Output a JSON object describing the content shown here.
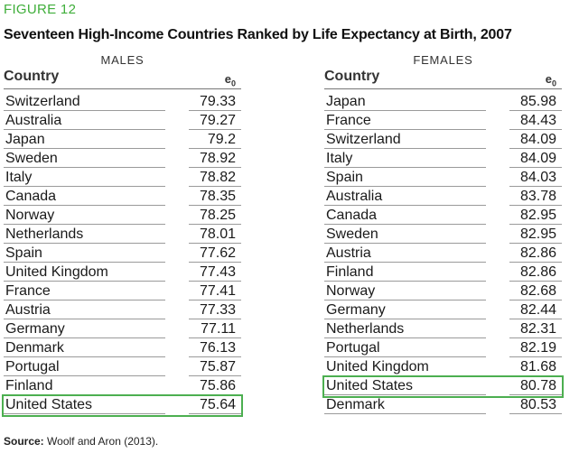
{
  "figure": {
    "label": "FIGURE 12",
    "title": "Seventeen High-Income Countries Ranked by Life Expectancy at Birth, 2007"
  },
  "columns": {
    "country": "Country",
    "e0_base": "e",
    "e0_sub": "0"
  },
  "males": {
    "title": "MALES",
    "rows": [
      {
        "country": "Switzerland",
        "value": "79.33"
      },
      {
        "country": "Australia",
        "value": "79.27"
      },
      {
        "country": "Japan",
        "value": "79.2"
      },
      {
        "country": "Sweden",
        "value": "78.92"
      },
      {
        "country": "Italy",
        "value": "78.82"
      },
      {
        "country": "Canada",
        "value": "78.35"
      },
      {
        "country": "Norway",
        "value": "78.25"
      },
      {
        "country": "Netherlands",
        "value": "78.01"
      },
      {
        "country": "Spain",
        "value": "77.62"
      },
      {
        "country": "United Kingdom",
        "value": "77.43"
      },
      {
        "country": "France",
        "value": "77.41"
      },
      {
        "country": "Austria",
        "value": "77.33"
      },
      {
        "country": "Germany",
        "value": "77.11"
      },
      {
        "country": "Denmark",
        "value": "76.13"
      },
      {
        "country": "Portugal",
        "value": "75.87"
      },
      {
        "country": "Finland",
        "value": "75.86"
      },
      {
        "country": "United States",
        "value": "75.64",
        "highlight": true
      }
    ]
  },
  "females": {
    "title": "FEMALES",
    "rows": [
      {
        "country": "Japan",
        "value": "85.98"
      },
      {
        "country": "France",
        "value": "84.43"
      },
      {
        "country": "Switzerland",
        "value": "84.09"
      },
      {
        "country": "Italy",
        "value": "84.09"
      },
      {
        "country": "Spain",
        "value": "84.03"
      },
      {
        "country": "Australia",
        "value": "83.78"
      },
      {
        "country": "Canada",
        "value": "82.95"
      },
      {
        "country": "Sweden",
        "value": "82.95"
      },
      {
        "country": "Austria",
        "value": "82.86"
      },
      {
        "country": "Finland",
        "value": "82.86"
      },
      {
        "country": "Norway",
        "value": "82.68"
      },
      {
        "country": "Germany",
        "value": "82.44"
      },
      {
        "country": "Netherlands",
        "value": "82.31"
      },
      {
        "country": "Portugal",
        "value": "82.19"
      },
      {
        "country": "United Kingdom",
        "value": "81.68"
      },
      {
        "country": "United States",
        "value": "80.78",
        "highlight": true
      },
      {
        "country": "Denmark",
        "value": "80.53"
      }
    ]
  },
  "source": {
    "label": "Source:",
    "text": "Woolf and Aron (2013)."
  },
  "colors": {
    "accent": "#3fae3a",
    "highlight_border": "#4caf50"
  }
}
